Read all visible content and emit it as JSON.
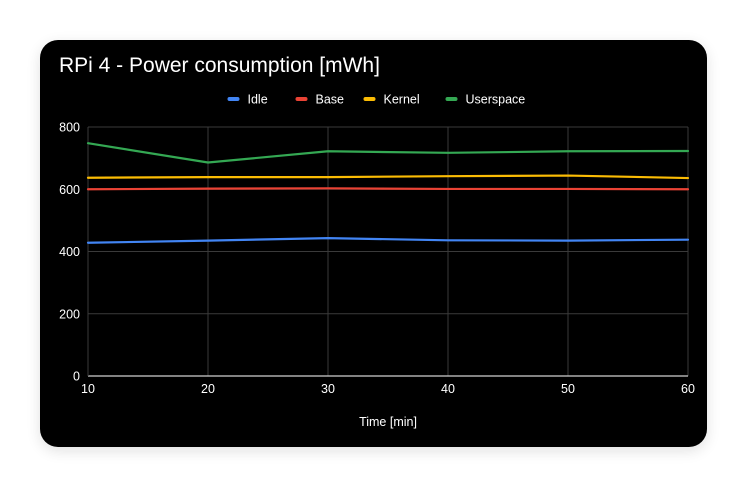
{
  "title": "RPi 4 - Power consumption [mWh]",
  "colors": {
    "background": "#000000",
    "grid": "#3a3a3a",
    "axis": "#cfcfcf",
    "text": "#ffffff"
  },
  "chart_data": {
    "type": "line",
    "title": "RPi 4 - Power consumption [mWh]",
    "xlabel": "Time [min]",
    "ylabel": "",
    "x": [
      10,
      20,
      30,
      40,
      50,
      60
    ],
    "xlim": [
      10,
      60
    ],
    "ylim": [
      0,
      800
    ],
    "x_ticks": [
      "10",
      "20",
      "30",
      "40",
      "50",
      "60"
    ],
    "y_ticks": [
      "0",
      "200",
      "400",
      "600",
      "800"
    ],
    "grid": true,
    "legend_position": "top",
    "series": [
      {
        "name": "Idle",
        "color": "#4285f4",
        "values": [
          428,
          435,
          443,
          436,
          435,
          438
        ]
      },
      {
        "name": "Base",
        "color": "#ea4335",
        "values": [
          600,
          602,
          603,
          601,
          601,
          600
        ]
      },
      {
        "name": "Kernel",
        "color": "#fbbc04",
        "values": [
          637,
          639,
          639,
          642,
          644,
          636
        ]
      },
      {
        "name": "Userspace",
        "color": "#34a853",
        "values": [
          748,
          686,
          722,
          717,
          722,
          723
        ]
      }
    ]
  }
}
